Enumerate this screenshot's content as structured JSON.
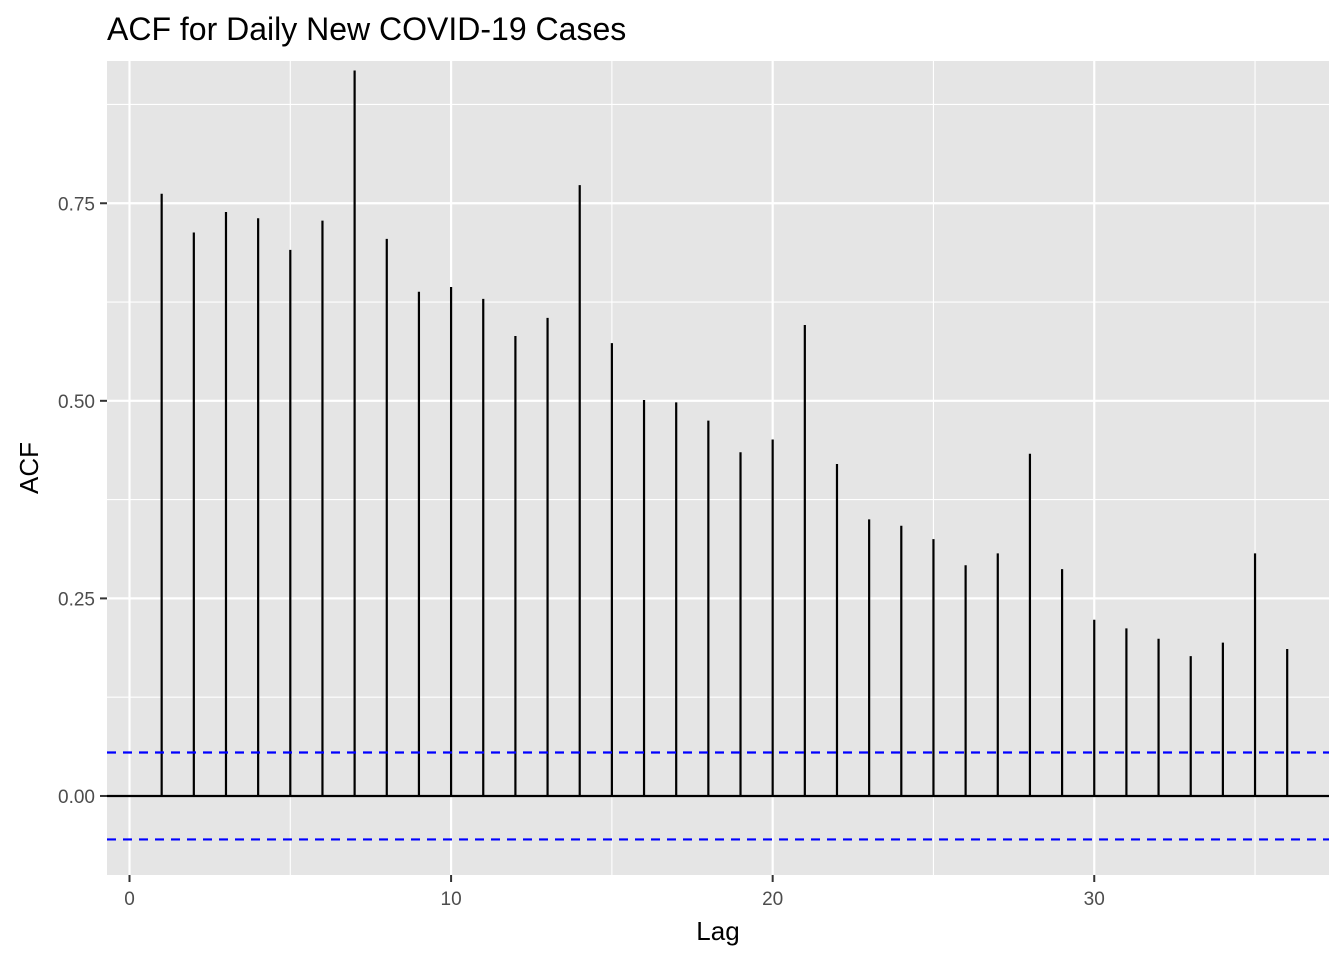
{
  "chart_data": {
    "type": "bar",
    "title": "ACF for Daily New COVID-19 Cases",
    "xlabel": "Lag",
    "ylabel": "ACF",
    "xlim": [
      -0.7,
      37.3
    ],
    "ylim": [
      -0.1,
      0.93
    ],
    "x_ticks": [
      0,
      10,
      20,
      30
    ],
    "x_tick_labels": [
      "0",
      "10",
      "20",
      "30"
    ],
    "y_ticks": [
      0,
      0.25,
      0.5,
      0.75
    ],
    "y_tick_labels": [
      "0.00",
      "0.25",
      "0.50",
      "0.75"
    ],
    "grid": true,
    "zero_line": 0,
    "confidence_bound": 0.055,
    "lags": [
      1,
      2,
      3,
      4,
      5,
      6,
      7,
      8,
      9,
      10,
      11,
      12,
      13,
      14,
      15,
      16,
      17,
      18,
      19,
      20,
      21,
      22,
      23,
      24,
      25,
      26,
      27,
      28,
      29,
      30,
      31,
      32,
      33,
      34,
      35,
      36
    ],
    "acf": [
      0.762,
      0.713,
      0.739,
      0.731,
      0.691,
      0.728,
      0.918,
      0.705,
      0.638,
      0.644,
      0.629,
      0.582,
      0.605,
      0.773,
      0.573,
      0.501,
      0.498,
      0.475,
      0.435,
      0.451,
      0.596,
      0.42,
      0.35,
      0.342,
      0.325,
      0.292,
      0.307,
      0.433,
      0.287,
      0.223,
      0.212,
      0.199,
      0.177,
      0.194,
      0.307,
      0.186
    ],
    "colors": {
      "panel_background": "#e5e5e5",
      "grid": "#ffffff",
      "bars": "#000000",
      "confidence_lines": "#0000ff",
      "zero_line": "#000000"
    }
  }
}
